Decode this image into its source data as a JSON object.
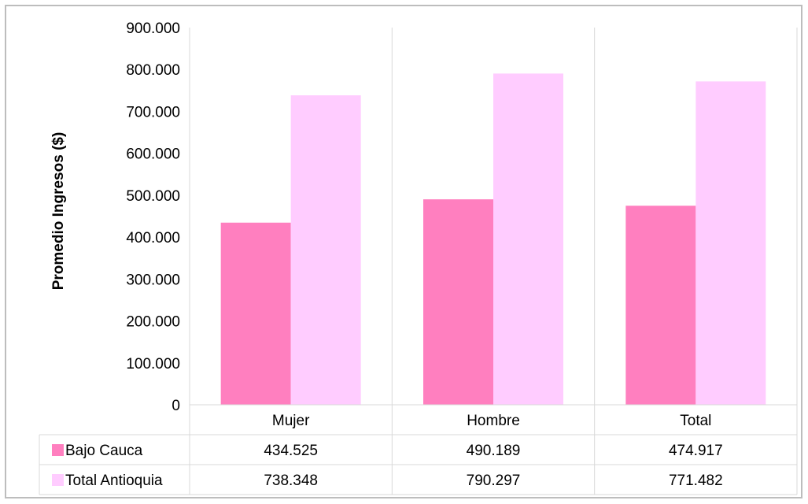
{
  "chart_data": {
    "type": "bar",
    "categories": [
      "Mujer",
      "Hombre",
      "Total"
    ],
    "series": [
      {
        "name": "Bajo Cauca",
        "values": [
          434525,
          490189,
          474917
        ],
        "labels": [
          "434.525",
          "490.189",
          "474.917"
        ],
        "color": "#ff7fbf"
      },
      {
        "name": "Total Antioquia",
        "values": [
          738348,
          790297,
          771482
        ],
        "labels": [
          "738.348",
          "790.297",
          "771.482"
        ],
        "color": "#ffccff"
      }
    ],
    "ylabel": "Promedio Ingresos ($)",
    "ylim": [
      0,
      900000
    ],
    "yticks": [
      0,
      100000,
      200000,
      300000,
      400000,
      500000,
      600000,
      700000,
      800000,
      900000
    ],
    "ytick_labels": [
      "0",
      "100.000",
      "200.000",
      "300.000",
      "400.000",
      "500.000",
      "600.000",
      "700.000",
      "800.000",
      "900.000"
    ],
    "grid": "vertical",
    "legend": "data-table",
    "gridline_color": "#d9d9d9"
  }
}
